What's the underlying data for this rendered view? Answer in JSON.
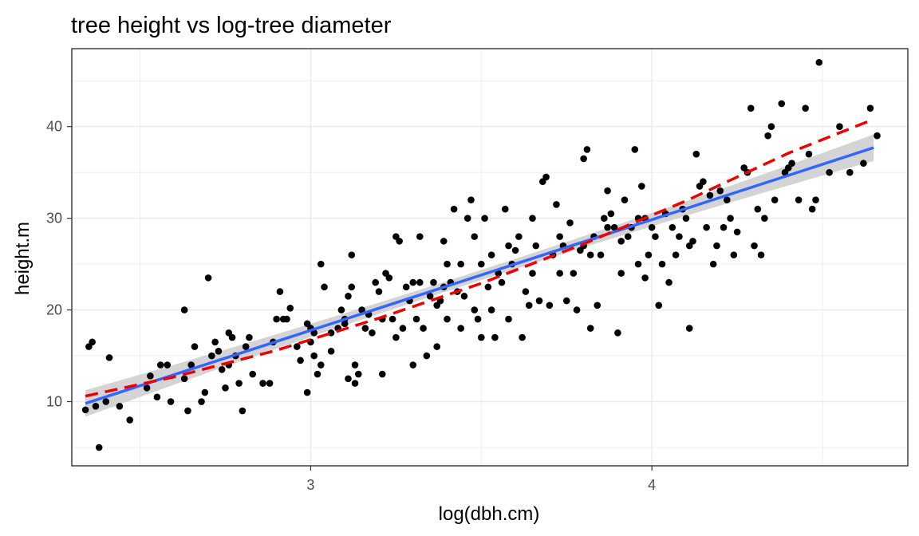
{
  "chart_data": {
    "type": "scatter",
    "title": "tree height vs log-tree diameter",
    "xlabel": "log(dbh.cm)",
    "ylabel": "height.m",
    "xlim": [
      2.3,
      4.75
    ],
    "ylim": [
      3.0,
      48.5
    ],
    "x_ticks": [
      3,
      4
    ],
    "x_tick_labels": [
      "3",
      "4"
    ],
    "y_ticks": [
      10,
      20,
      30,
      40
    ],
    "y_tick_labels": [
      "10",
      "20",
      "30",
      "40"
    ],
    "grid": true,
    "legend": "none",
    "colors": {
      "points": "#000000",
      "linear_fit": "#3366ff",
      "curve_fit": "#ee0000",
      "confidence_band": "#cccccc",
      "grid": "#ebebeb",
      "panel_border": "#333333"
    },
    "series": [
      {
        "type": "scatter",
        "points": [
          [
            2.34,
            9.1
          ],
          [
            2.35,
            16.0
          ],
          [
            2.36,
            16.5
          ],
          [
            2.37,
            9.5
          ],
          [
            2.38,
            5.0
          ],
          [
            2.4,
            10.0
          ],
          [
            2.41,
            14.8
          ],
          [
            2.44,
            9.5
          ],
          [
            2.47,
            8.0
          ],
          [
            2.52,
            11.5
          ],
          [
            2.53,
            12.8
          ],
          [
            2.55,
            10.5
          ],
          [
            2.56,
            14.0
          ],
          [
            2.58,
            14.0
          ],
          [
            2.59,
            10.0
          ],
          [
            2.63,
            12.5
          ],
          [
            2.63,
            20.0
          ],
          [
            2.64,
            9.0
          ],
          [
            2.65,
            14.0
          ],
          [
            2.66,
            16.0
          ],
          [
            2.68,
            10.0
          ],
          [
            2.69,
            11.0
          ],
          [
            2.7,
            23.5
          ],
          [
            2.71,
            15.0
          ],
          [
            2.72,
            16.5
          ],
          [
            2.73,
            15.5
          ],
          [
            2.74,
            13.5
          ],
          [
            2.75,
            11.5
          ],
          [
            2.76,
            17.5
          ],
          [
            2.76,
            14.0
          ],
          [
            2.77,
            17.0
          ],
          [
            2.78,
            15.0
          ],
          [
            2.79,
            12.0
          ],
          [
            2.8,
            9.0
          ],
          [
            2.81,
            16.0
          ],
          [
            2.82,
            17.0
          ],
          [
            2.83,
            13.0
          ],
          [
            2.86,
            12.0
          ],
          [
            2.88,
            12.0
          ],
          [
            2.89,
            16.5
          ],
          [
            2.9,
            19.0
          ],
          [
            2.91,
            22.0
          ],
          [
            2.92,
            19.0
          ],
          [
            2.93,
            19.0
          ],
          [
            2.94,
            20.2
          ],
          [
            2.96,
            16.0
          ],
          [
            2.97,
            14.5
          ],
          [
            2.99,
            18.5
          ],
          [
            2.99,
            11.0
          ],
          [
            3.0,
            18.0
          ],
          [
            3.0,
            16.5
          ],
          [
            3.01,
            17.5
          ],
          [
            3.01,
            15.0
          ],
          [
            3.02,
            13.0
          ],
          [
            3.03,
            25.0
          ],
          [
            3.03,
            14.0
          ],
          [
            3.04,
            22.5
          ],
          [
            3.06,
            17.5
          ],
          [
            3.06,
            15.5
          ],
          [
            3.08,
            18.0
          ],
          [
            3.09,
            20.0
          ],
          [
            3.1,
            19.0
          ],
          [
            3.1,
            18.5
          ],
          [
            3.11,
            21.5
          ],
          [
            3.11,
            12.5
          ],
          [
            3.12,
            22.5
          ],
          [
            3.12,
            26.0
          ],
          [
            3.13,
            14.0
          ],
          [
            3.13,
            12.0
          ],
          [
            3.14,
            13.0
          ],
          [
            3.15,
            20.0
          ],
          [
            3.16,
            18.0
          ],
          [
            3.17,
            19.5
          ],
          [
            3.18,
            17.5
          ],
          [
            3.19,
            23.0
          ],
          [
            3.2,
            22.0
          ],
          [
            3.21,
            19.0
          ],
          [
            3.21,
            13.0
          ],
          [
            3.22,
            24.0
          ],
          [
            3.23,
            23.5
          ],
          [
            3.24,
            19.0
          ],
          [
            3.25,
            17.0
          ],
          [
            3.25,
            28.0
          ],
          [
            3.26,
            27.5
          ],
          [
            3.27,
            18.0
          ],
          [
            3.28,
            22.5
          ],
          [
            3.29,
            21.0
          ],
          [
            3.3,
            23.0
          ],
          [
            3.3,
            14.0
          ],
          [
            3.31,
            19.0
          ],
          [
            3.32,
            23.0
          ],
          [
            3.32,
            28.0
          ],
          [
            3.33,
            18.0
          ],
          [
            3.34,
            15.0
          ],
          [
            3.35,
            21.5
          ],
          [
            3.36,
            23.0
          ],
          [
            3.37,
            20.5
          ],
          [
            3.37,
            16.0
          ],
          [
            3.38,
            21.0
          ],
          [
            3.39,
            22.5
          ],
          [
            3.39,
            27.5
          ],
          [
            3.4,
            25.0
          ],
          [
            3.4,
            19.0
          ],
          [
            3.41,
            23.0
          ],
          [
            3.42,
            31.0
          ],
          [
            3.43,
            22.0
          ],
          [
            3.44,
            25.0
          ],
          [
            3.44,
            18.0
          ],
          [
            3.45,
            21.5
          ],
          [
            3.46,
            30.0
          ],
          [
            3.47,
            32.0
          ],
          [
            3.48,
            20.0
          ],
          [
            3.48,
            28.0
          ],
          [
            3.49,
            19.0
          ],
          [
            3.5,
            17.0
          ],
          [
            3.5,
            25.0
          ],
          [
            3.51,
            30.0
          ],
          [
            3.52,
            22.5
          ],
          [
            3.53,
            26.0
          ],
          [
            3.53,
            20.0
          ],
          [
            3.54,
            17.0
          ],
          [
            3.55,
            24.0
          ],
          [
            3.56,
            23.0
          ],
          [
            3.57,
            31.0
          ],
          [
            3.58,
            27.0
          ],
          [
            3.58,
            19.0
          ],
          [
            3.59,
            25.0
          ],
          [
            3.6,
            26.5
          ],
          [
            3.61,
            28.0
          ],
          [
            3.62,
            17.0
          ],
          [
            3.63,
            22.0
          ],
          [
            3.64,
            20.5
          ],
          [
            3.65,
            30.0
          ],
          [
            3.65,
            24.0
          ],
          [
            3.66,
            27.0
          ],
          [
            3.67,
            21.0
          ],
          [
            3.68,
            34.0
          ],
          [
            3.69,
            34.5
          ],
          [
            3.7,
            20.5
          ],
          [
            3.71,
            26.0
          ],
          [
            3.72,
            31.5
          ],
          [
            3.73,
            24.0
          ],
          [
            3.73,
            28.0
          ],
          [
            3.74,
            27.0
          ],
          [
            3.75,
            21.0
          ],
          [
            3.76,
            29.5
          ],
          [
            3.77,
            24.0
          ],
          [
            3.78,
            20.0
          ],
          [
            3.79,
            26.5
          ],
          [
            3.8,
            27.0
          ],
          [
            3.8,
            36.5
          ],
          [
            3.81,
            37.5
          ],
          [
            3.82,
            18.0
          ],
          [
            3.82,
            26.0
          ],
          [
            3.83,
            28.0
          ],
          [
            3.84,
            20.5
          ],
          [
            3.85,
            26.0
          ],
          [
            3.86,
            30.0
          ],
          [
            3.87,
            33.0
          ],
          [
            3.87,
            29.0
          ],
          [
            3.88,
            30.5
          ],
          [
            3.89,
            29.0
          ],
          [
            3.9,
            17.5
          ],
          [
            3.91,
            27.5
          ],
          [
            3.91,
            24.0
          ],
          [
            3.92,
            32.0
          ],
          [
            3.93,
            28.0
          ],
          [
            3.94,
            29.0
          ],
          [
            3.95,
            37.5
          ],
          [
            3.96,
            25.0
          ],
          [
            3.96,
            30.0
          ],
          [
            3.97,
            33.5
          ],
          [
            3.98,
            30.0
          ],
          [
            3.98,
            23.5
          ],
          [
            3.99,
            26.0
          ],
          [
            4.0,
            29.0
          ],
          [
            4.01,
            28.0
          ],
          [
            4.02,
            20.5
          ],
          [
            4.03,
            25.0
          ],
          [
            4.04,
            30.5
          ],
          [
            4.05,
            23.0
          ],
          [
            4.06,
            29.0
          ],
          [
            4.07,
            26.0
          ],
          [
            4.08,
            28.0
          ],
          [
            4.09,
            31.0
          ],
          [
            4.1,
            30.0
          ],
          [
            4.11,
            27.0
          ],
          [
            4.11,
            18.0
          ],
          [
            4.12,
            27.5
          ],
          [
            4.13,
            37.0
          ],
          [
            4.14,
            33.5
          ],
          [
            4.15,
            34.0
          ],
          [
            4.16,
            29.0
          ],
          [
            4.17,
            32.5
          ],
          [
            4.18,
            25.0
          ],
          [
            4.19,
            27.0
          ],
          [
            4.2,
            33.0
          ],
          [
            4.21,
            29.0
          ],
          [
            4.22,
            32.0
          ],
          [
            4.23,
            30.0
          ],
          [
            4.24,
            26.0
          ],
          [
            4.25,
            28.5
          ],
          [
            4.27,
            35.5
          ],
          [
            4.28,
            35.0
          ],
          [
            4.29,
            42.0
          ],
          [
            4.3,
            27.0
          ],
          [
            4.31,
            31.0
          ],
          [
            4.32,
            26.0
          ],
          [
            4.33,
            30.0
          ],
          [
            4.34,
            39.0
          ],
          [
            4.35,
            40.0
          ],
          [
            4.36,
            32.0
          ],
          [
            4.38,
            42.5
          ],
          [
            4.39,
            35.0
          ],
          [
            4.4,
            35.5
          ],
          [
            4.41,
            36.0
          ],
          [
            4.43,
            32.0
          ],
          [
            4.45,
            42.0
          ],
          [
            4.46,
            37.0
          ],
          [
            4.47,
            31.0
          ],
          [
            4.48,
            32.0
          ],
          [
            4.49,
            47.0
          ],
          [
            4.52,
            35.0
          ],
          [
            4.55,
            40.0
          ],
          [
            4.58,
            35.0
          ],
          [
            4.62,
            36.0
          ],
          [
            4.64,
            42.0
          ],
          [
            4.66,
            39.0
          ]
        ]
      },
      {
        "type": "line",
        "points": [
          [
            2.34,
            9.8
          ],
          [
            4.65,
            37.7
          ]
        ]
      },
      {
        "type": "line",
        "points": [
          [
            2.34,
            10.6
          ],
          [
            2.6,
            12.7
          ],
          [
            2.9,
            15.6
          ],
          [
            3.2,
            19.1
          ],
          [
            3.5,
            22.9
          ],
          [
            3.8,
            27.2
          ],
          [
            4.1,
            31.9
          ],
          [
            4.4,
            37.1
          ],
          [
            4.65,
            40.8
          ]
        ]
      }
    ]
  }
}
